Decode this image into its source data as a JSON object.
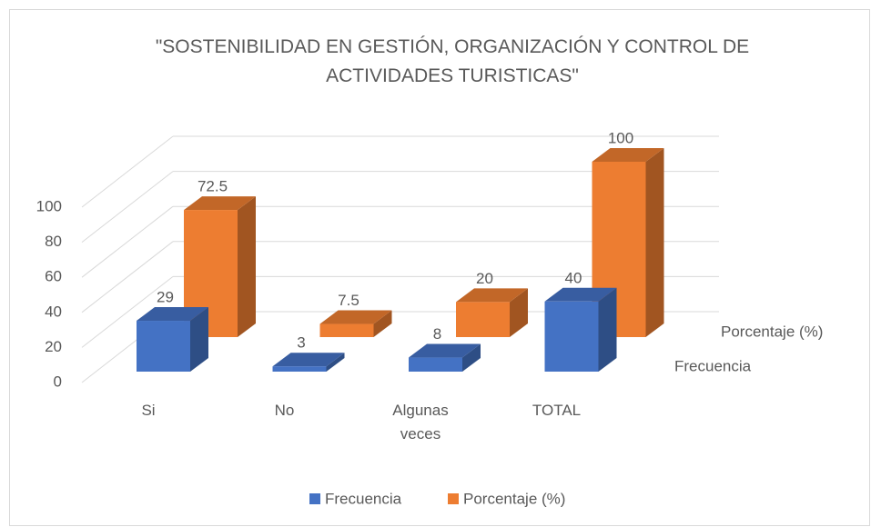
{
  "chart_data": {
    "type": "bar3d",
    "title": "\"SOSTENIBILIDAD EN GESTIÓN, ORGANIZACIÓN Y CONTROL DE ACTIVIDADES TURISTICAS\"",
    "categories": [
      "Si",
      "No",
      "Algunas veces",
      "TOTAL"
    ],
    "series": [
      {
        "name": "Frecuencia",
        "color": "#4472c4",
        "values": [
          29,
          3,
          8,
          40
        ]
      },
      {
        "name": "Porcentaje (%)",
        "color": "#ed7d31",
        "values": [
          72.5,
          7.5,
          20,
          100
        ]
      }
    ],
    "ylim": [
      0,
      100
    ],
    "yticks": [
      0,
      20,
      40,
      60,
      80,
      100
    ],
    "grid": true,
    "legend": "bottom"
  }
}
